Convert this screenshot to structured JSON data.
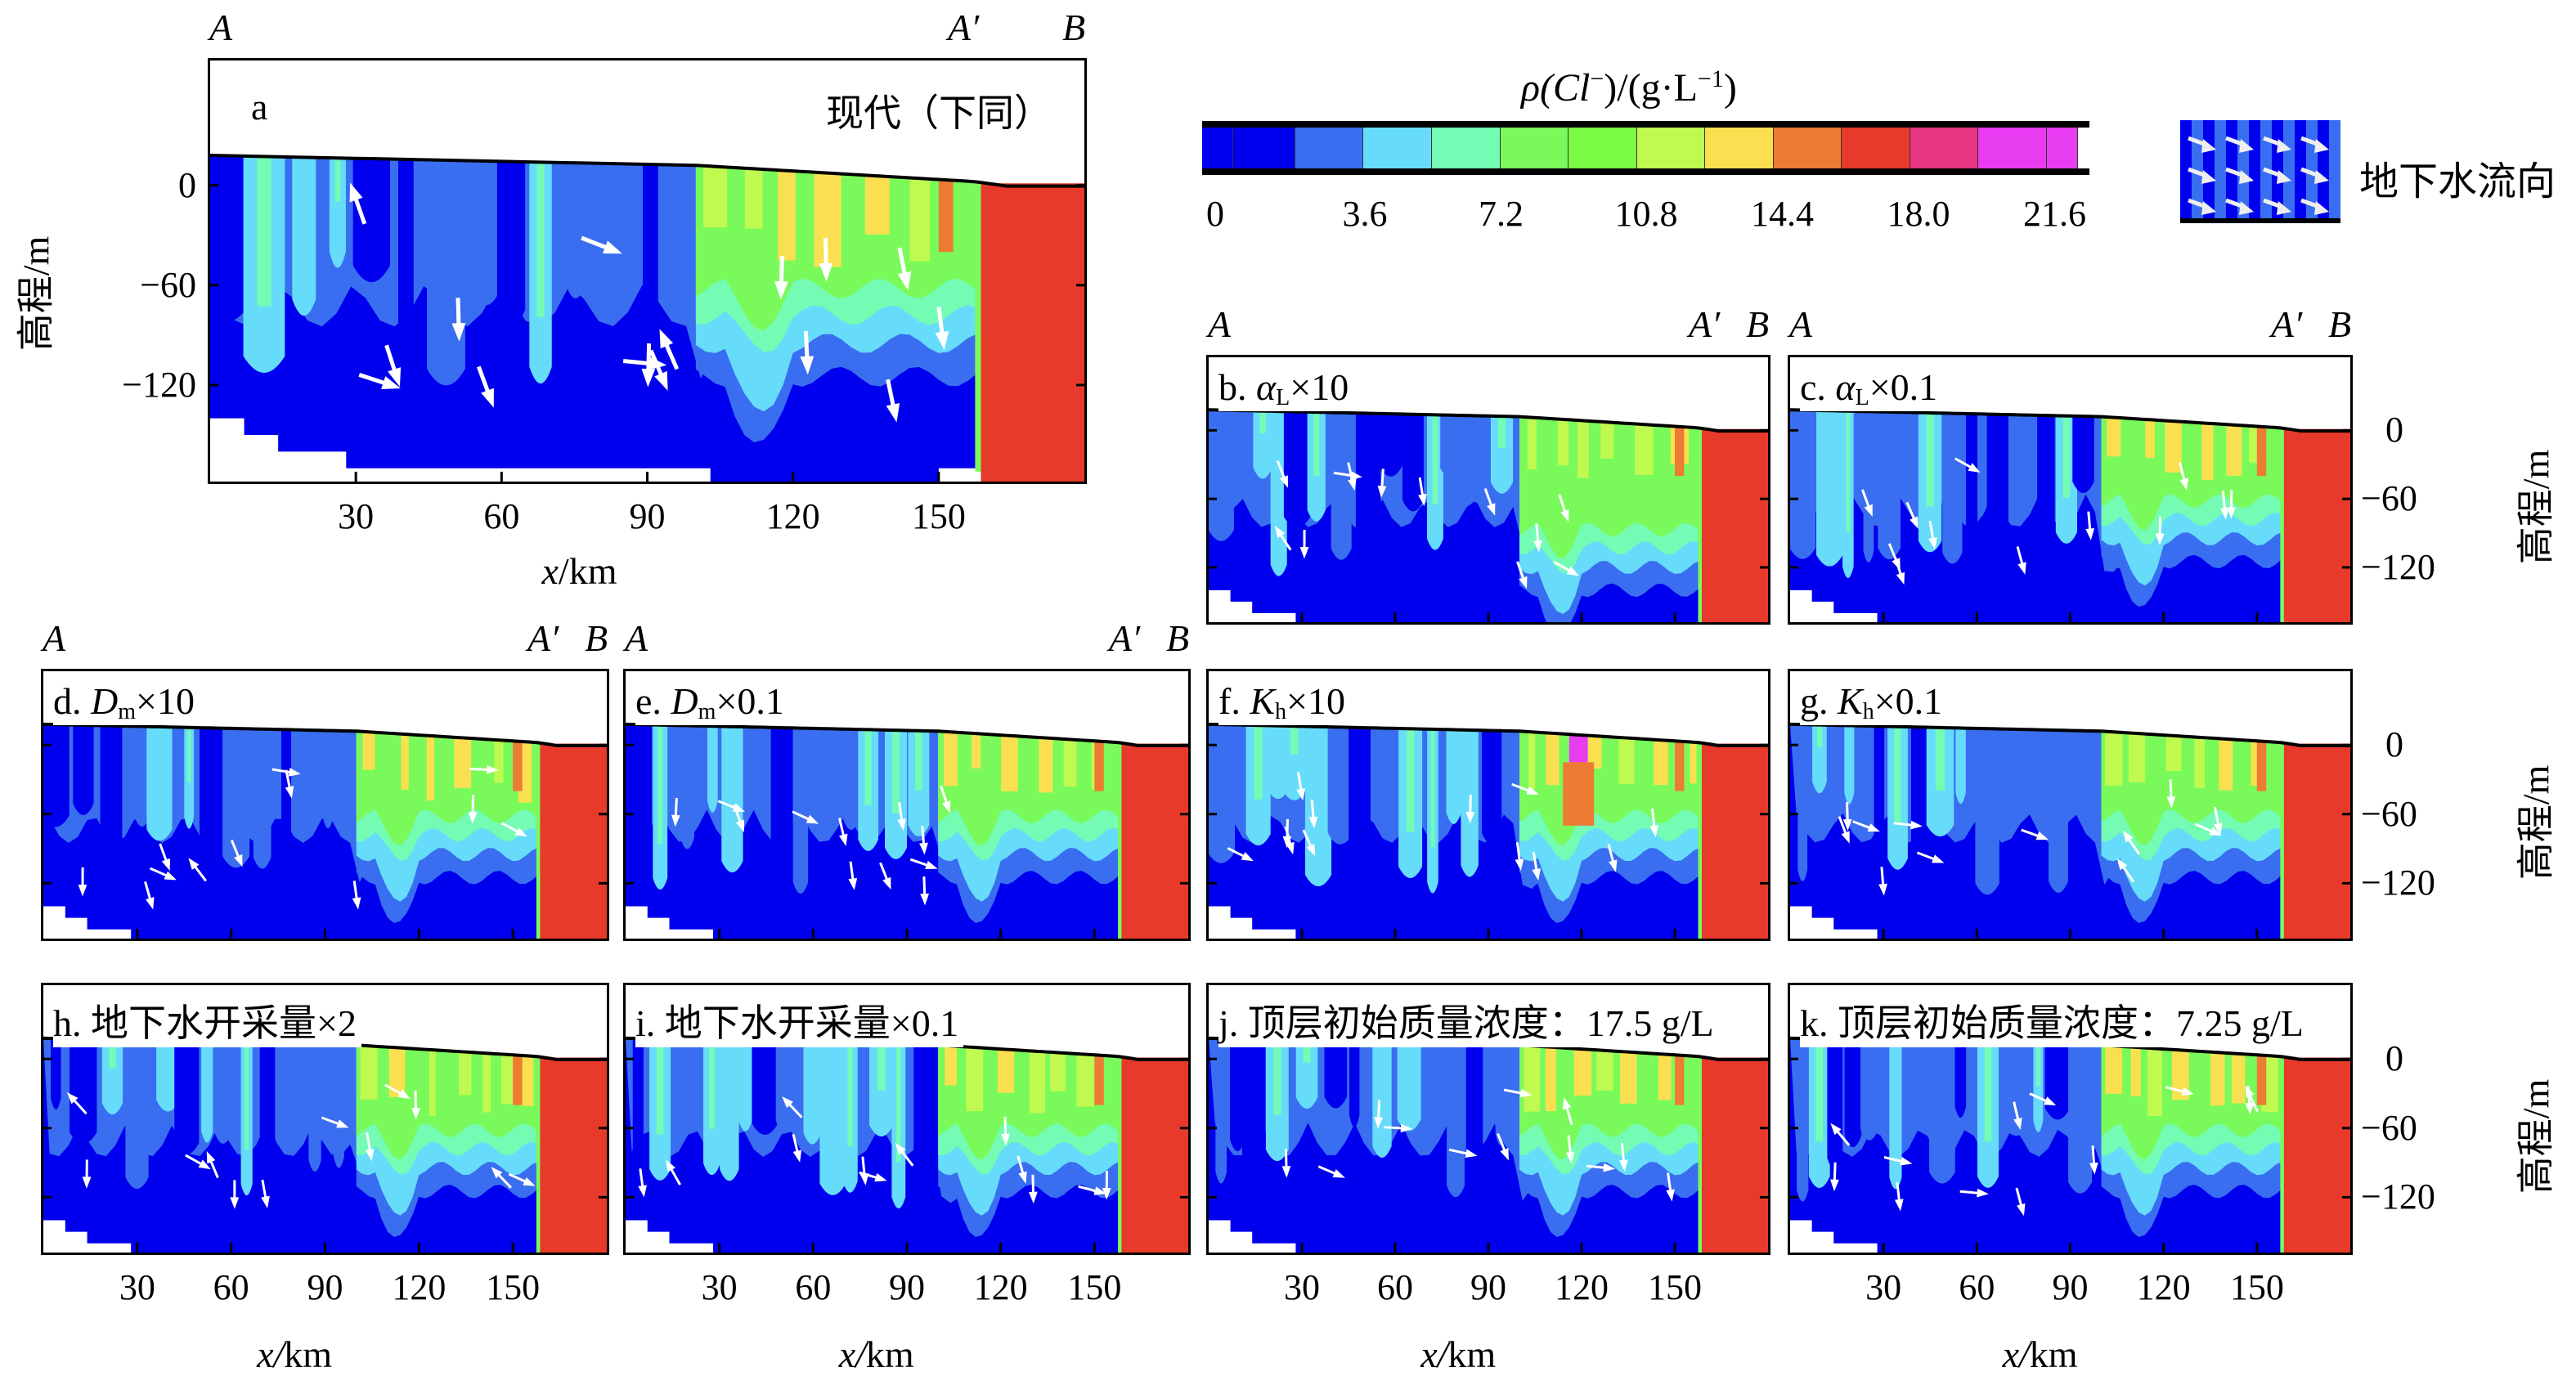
{
  "colorbar": {
    "title_prefix": "ρ(Cl",
    "title_sup1": "−",
    "title_mid": ")/(g·L",
    "title_sup2": "−1",
    "title_suffix": ")",
    "tick_labels": [
      "0",
      "3.6",
      "7.2",
      "10.8",
      "14.4",
      "18.0",
      "21.6"
    ],
    "colors": [
      "#0000ee",
      "#0000ee",
      "#3a6ef0",
      "#66dcfa",
      "#74fbb4",
      "#7afa5a",
      "#7afa45",
      "#c0fa50",
      "#fae050",
      "#ee7b33",
      "#e83a2a",
      "#e83580",
      "#e83cf0",
      "#e83cf0"
    ]
  },
  "flow_legend": {
    "label": "地下水流向"
  },
  "markers": {
    "a": "A",
    "a_prime": "A′",
    "b": "B"
  },
  "axis": {
    "ylabel": "高程/m",
    "xlabel_var": "x",
    "xlabel_unit": "/km",
    "xticks": [
      "30",
      "60",
      "90",
      "120",
      "150"
    ],
    "yticks": [
      "0",
      "−60",
      "−120"
    ]
  },
  "chart_data": {
    "type": "contour",
    "quantity": "ρ(Cl⁻)/(g·L⁻¹)",
    "levels": [
      0,
      3.6,
      7.2,
      10.8,
      14.4,
      18.0,
      21.6
    ],
    "xlabel": "x/km",
    "ylabel": "高程/m",
    "xlim": [
      0,
      180
    ],
    "ylim_main": [
      -178,
      75
    ],
    "ylim_small": [
      -168,
      64
    ],
    "xticks": [
      30,
      60,
      90,
      120,
      150
    ],
    "yticks": [
      0,
      -60,
      -120
    ],
    "legend": "top-right",
    "panels": [
      {
        "id": "a",
        "label": "a",
        "note": "现代（下同）"
      },
      {
        "id": "b",
        "prefix": "b. ",
        "sym": "α",
        "sub": "L",
        "suffix": "×10"
      },
      {
        "id": "c",
        "prefix": "c. ",
        "sym": "α",
        "sub": "L",
        "suffix": "×0.1"
      },
      {
        "id": "d",
        "prefix": "d. ",
        "sym": "D",
        "sub": "m",
        "suffix": "×10"
      },
      {
        "id": "e",
        "prefix": "e. ",
        "sym": "D",
        "sub": "m",
        "suffix": "×0.1"
      },
      {
        "id": "f",
        "prefix": "f. ",
        "sym": "K",
        "sub": "h",
        "suffix": "×10"
      },
      {
        "id": "g",
        "prefix": "g. ",
        "sym": "K",
        "sub": "h",
        "suffix": "×0.1"
      },
      {
        "id": "h",
        "prefix": "h. 地下水开采量×2",
        "sym": "",
        "sub": "",
        "suffix": ""
      },
      {
        "id": "i",
        "prefix": "i. 地下水开采量×0.1",
        "sym": "",
        "sub": "",
        "suffix": ""
      },
      {
        "id": "j",
        "prefix": "j. 顶层初始质量浓度：17.5 g/L",
        "sym": "",
        "sub": "",
        "suffix": ""
      },
      {
        "id": "k",
        "prefix": "k. 顶层初始质量浓度：7.25 g/L",
        "sym": "",
        "sub": "",
        "suffix": ""
      }
    ]
  }
}
